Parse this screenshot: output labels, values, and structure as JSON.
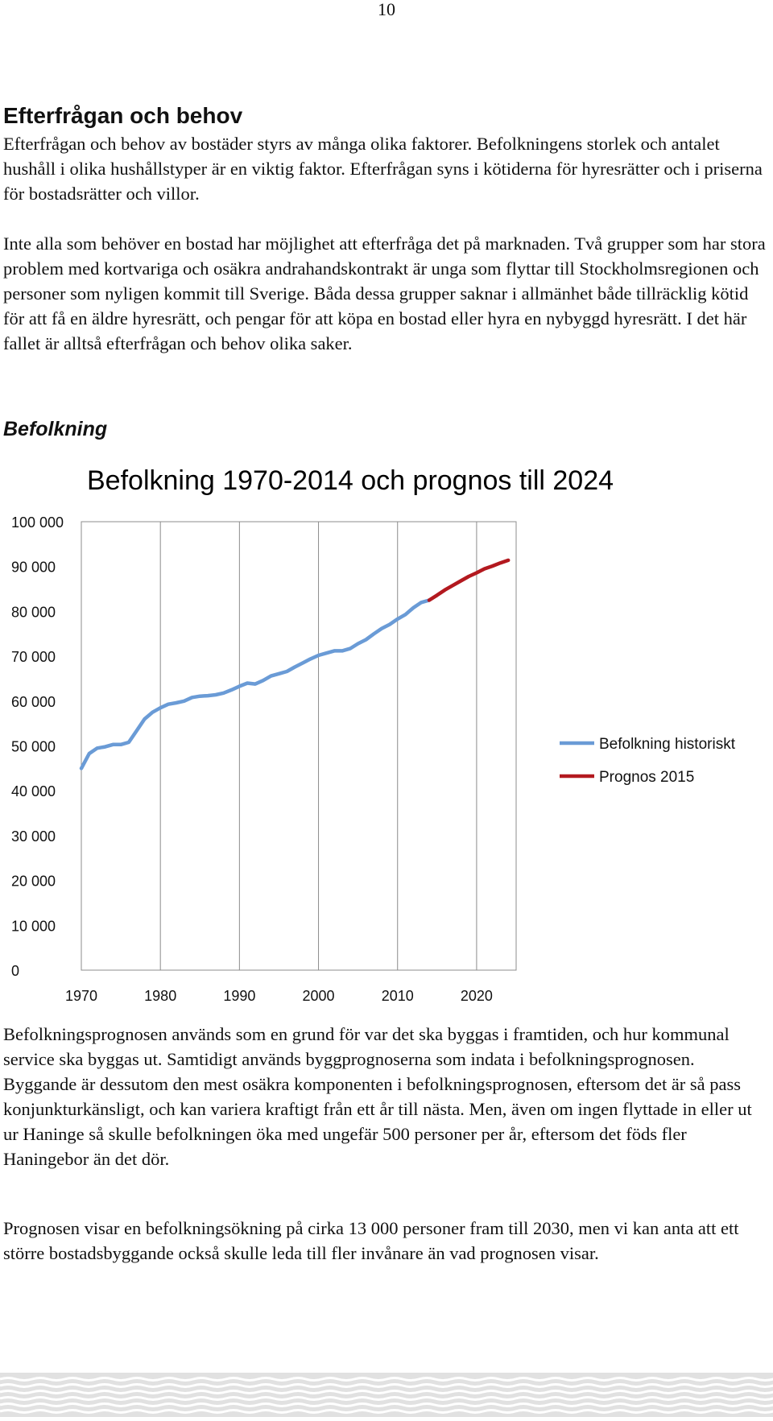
{
  "page": {
    "number": "10"
  },
  "section": {
    "heading": "Efterfrågan och behov",
    "paragraphs": [
      "Efterfrågan och behov av bostäder styrs av många olika faktorer. Befolkningens storlek och antalet hushåll i olika hushållstyper är en viktig faktor. Efterfrågan syns i kötiderna för hyresrätter och i priserna för bostadsrätter och villor.",
      "Inte alla som behöver en bostad har möjlighet att efterfråga det på marknaden. Två grupper som har stora problem med kortvariga och osäkra andrahandskontrakt är unga som flyttar till Stockholmsregionen och personer som nyligen kommit till Sverige. Båda dessa grupper saknar i allmänhet både tillräcklig kötid för att få en äldre hyresrätt, och pengar för att köpa en bostad eller hyra en nybyggd hyresrätt. I det här fallet är alltså efterfrågan och behov olika saker."
    ]
  },
  "subsection": {
    "heading": "Befolkning",
    "paragraphs": [
      "Befolkningsprognosen används som en grund för var det ska byggas i framtiden, och hur kommunal service ska byggas ut. Samtidigt används byggprognoserna som indata i befolkningsprognosen. Byggande är dessutom den mest osäkra komponenten i befolkningsprognosen, eftersom det är så pass konjunkturkänsligt, och kan variera kraftigt från ett år till nästa. Men, även om ingen flyttade in eller ut ur Haninge så skulle befolkningen öka med ungefär 500 personer per år, eftersom det föds fler Haningebor än det dör.",
      "Prognosen visar en befolkningsökning på cirka 13 000 personer fram till 2030, men vi kan anta att ett större bostadsbyggande också skulle leda till fler invånare än vad prognosen visar."
    ]
  },
  "chart_data": {
    "type": "line",
    "title": "Befolkning 1970-2014 och prognos till 2024",
    "xlabel": "",
    "ylabel": "",
    "xlim": [
      1970,
      2025
    ],
    "ylim": [
      0,
      100000
    ],
    "x_ticks": [
      1970,
      1980,
      1990,
      2000,
      2010,
      2020
    ],
    "y_ticks": [
      0,
      10000,
      20000,
      30000,
      40000,
      50000,
      60000,
      70000,
      80000,
      90000,
      100000
    ],
    "y_tick_labels": [
      "0",
      "10 000",
      "20 000",
      "30 000",
      "40 000",
      "50 000",
      "60 000",
      "70 000",
      "80 000",
      "90 000",
      "100 000"
    ],
    "x_tick_labels": [
      "1970",
      "1980",
      "1990",
      "2000",
      "2010",
      "2020"
    ],
    "vertical_gridlines": true,
    "horizontal_gridlines": false,
    "legend_position": "right",
    "series": [
      {
        "name": "Befolkning historiskt",
        "color": "#6a9bd6",
        "x": [
          1970,
          1971,
          1972,
          1973,
          1974,
          1975,
          1976,
          1977,
          1978,
          1979,
          1980,
          1981,
          1982,
          1983,
          1984,
          1985,
          1986,
          1987,
          1988,
          1989,
          1990,
          1991,
          1992,
          1993,
          1994,
          1995,
          1996,
          1997,
          1998,
          1999,
          2000,
          2001,
          2002,
          2003,
          2004,
          2005,
          2006,
          2007,
          2008,
          2009,
          2010,
          2011,
          2012,
          2013,
          2014
        ],
        "values": [
          45000,
          48300,
          49500,
          49800,
          50300,
          50300,
          50800,
          53400,
          56000,
          57500,
          58500,
          59300,
          59600,
          60000,
          60800,
          61100,
          61200,
          61400,
          61800,
          62500,
          63300,
          64000,
          63800,
          64600,
          65600,
          66100,
          66600,
          67600,
          68500,
          69400,
          70200,
          70700,
          71200,
          71200,
          71700,
          72800,
          73700,
          75000,
          76200,
          77100,
          78300,
          79300,
          80800,
          82000,
          82500
        ]
      },
      {
        "name": "Prognos 2015",
        "color": "#b3191f",
        "x": [
          2014,
          2015,
          2016,
          2017,
          2018,
          2019,
          2020,
          2021,
          2022,
          2023,
          2024
        ],
        "values": [
          82500,
          83600,
          84800,
          85800,
          86800,
          87800,
          88600,
          89500,
          90100,
          90800,
          91400
        ]
      }
    ]
  }
}
